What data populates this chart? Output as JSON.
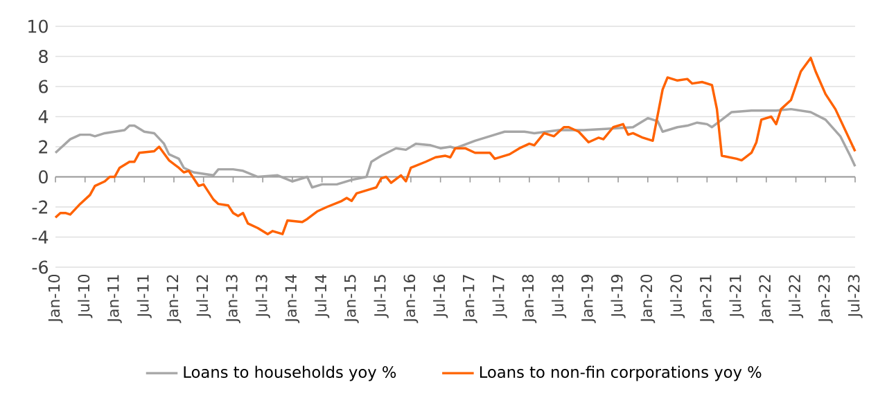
{
  "chart_data": {
    "type": "line",
    "xlim": [
      "2010-01",
      "2023-07"
    ],
    "xticks": [
      {
        "value": "2010-01",
        "label": "Jan-10"
      },
      {
        "value": "2010-07",
        "label": "Jul-10"
      },
      {
        "value": "2011-01",
        "label": "Jan-11"
      },
      {
        "value": "2011-07",
        "label": "Jul-11"
      },
      {
        "value": "2012-01",
        "label": "Jan-12"
      },
      {
        "value": "2012-07",
        "label": "Jul-12"
      },
      {
        "value": "2013-01",
        "label": "Jan-13"
      },
      {
        "value": "2013-07",
        "label": "Jul-13"
      },
      {
        "value": "2014-01",
        "label": "Jan-14"
      },
      {
        "value": "2014-07",
        "label": "Jul-14"
      },
      {
        "value": "2015-01",
        "label": "Jan-15"
      },
      {
        "value": "2015-07",
        "label": "Jul-15"
      },
      {
        "value": "2016-01",
        "label": "Jan-16"
      },
      {
        "value": "2016-07",
        "label": "Jul-16"
      },
      {
        "value": "2017-01",
        "label": "Jan-17"
      },
      {
        "value": "2017-07",
        "label": "Jul-17"
      },
      {
        "value": "2018-01",
        "label": "Jan-18"
      },
      {
        "value": "2018-07",
        "label": "Jul-18"
      },
      {
        "value": "2019-01",
        "label": "Jan-19"
      },
      {
        "value": "2019-07",
        "label": "Jul-19"
      },
      {
        "value": "2020-01",
        "label": "Jan-20"
      },
      {
        "value": "2020-07",
        "label": "Jul-20"
      },
      {
        "value": "2021-01",
        "label": "Jan-21"
      },
      {
        "value": "2021-07",
        "label": "Jul-21"
      },
      {
        "value": "2022-01",
        "label": "Jan-22"
      },
      {
        "value": "2022-07",
        "label": "Jul-22"
      },
      {
        "value": "2023-01",
        "label": "Jan-23"
      },
      {
        "value": "2023-07",
        "label": "Jul-23"
      }
    ],
    "ylim": [
      -6,
      10
    ],
    "yticks": [
      -6,
      -4,
      -2,
      0,
      2,
      4,
      6,
      8,
      10
    ],
    "grid": "y",
    "legend": "bottom",
    "marker": "none",
    "line_style": "solid",
    "series": [
      {
        "name": "Loans to households yoy %",
        "color": "#a6a6a6",
        "x": [
          "2010-01",
          "2010-04",
          "2010-06",
          "2010-08",
          "2010-09",
          "2010-11",
          "2011-01",
          "2011-03",
          "2011-04",
          "2011-05",
          "2011-07",
          "2011-09",
          "2011-11",
          "2011-12",
          "2012-02",
          "2012-03",
          "2012-05",
          "2012-09",
          "2012-10",
          "2013-01",
          "2013-03",
          "2013-06",
          "2013-10",
          "2014-01",
          "2014-04",
          "2014-05",
          "2014-07",
          "2014-10",
          "2015-01",
          "2015-04",
          "2015-05",
          "2015-07",
          "2015-10",
          "2015-12",
          "2016-02",
          "2016-05",
          "2016-07",
          "2016-09",
          "2016-10",
          "2017-02",
          "2017-06",
          "2017-08",
          "2017-12",
          "2018-02",
          "2018-07",
          "2018-12",
          "2019-05",
          "2019-10",
          "2020-01",
          "2020-03",
          "2020-04",
          "2020-07",
          "2020-09",
          "2020-11",
          "2021-01",
          "2021-02",
          "2021-04",
          "2021-06",
          "2021-10",
          "2022-03",
          "2022-06",
          "2022-10",
          "2023-01",
          "2023-04",
          "2023-06",
          "2023-07"
        ],
        "values": [
          1.6,
          2.5,
          2.8,
          2.8,
          2.7,
          2.9,
          3.0,
          3.1,
          3.4,
          3.4,
          3.0,
          2.9,
          2.2,
          1.5,
          1.2,
          0.6,
          0.3,
          0.1,
          0.5,
          0.5,
          0.4,
          0.0,
          0.1,
          -0.3,
          0.0,
          -0.7,
          -0.5,
          -0.5,
          -0.2,
          0.0,
          1.0,
          1.4,
          1.9,
          1.8,
          2.2,
          2.1,
          1.9,
          2.0,
          1.9,
          2.4,
          2.8,
          3.0,
          3.0,
          2.9,
          3.1,
          3.1,
          3.2,
          3.3,
          3.9,
          3.7,
          3.0,
          3.3,
          3.4,
          3.6,
          3.5,
          3.3,
          3.8,
          4.3,
          4.4,
          4.4,
          4.5,
          4.3,
          3.8,
          2.7,
          1.4,
          0.7
        ]
      },
      {
        "name": "Loans to non-fin corporations yoy %",
        "color": "#ff6200",
        "x": [
          "2010-01",
          "2010-02",
          "2010-03",
          "2010-04",
          "2010-06",
          "2010-08",
          "2010-09",
          "2010-11",
          "2010-12",
          "2011-01",
          "2011-02",
          "2011-04",
          "2011-05",
          "2011-06",
          "2011-09",
          "2011-10",
          "2011-12",
          "2012-02",
          "2012-03",
          "2012-04",
          "2012-06",
          "2012-07",
          "2012-09",
          "2012-10",
          "2012-12",
          "2013-01",
          "2013-02",
          "2013-03",
          "2013-04",
          "2013-06",
          "2013-08",
          "2013-09",
          "2013-11",
          "2013-12",
          "2014-03",
          "2014-04",
          "2014-06",
          "2014-08",
          "2014-11",
          "2014-12",
          "2015-01",
          "2015-02",
          "2015-05",
          "2015-06",
          "2015-07",
          "2015-08",
          "2015-09",
          "2015-11",
          "2015-12",
          "2016-01",
          "2016-04",
          "2016-06",
          "2016-08",
          "2016-09",
          "2016-10",
          "2016-12",
          "2017-02",
          "2017-05",
          "2017-06",
          "2017-09",
          "2017-11",
          "2018-01",
          "2018-02",
          "2018-04",
          "2018-06",
          "2018-08",
          "2018-09",
          "2018-11",
          "2019-01",
          "2019-03",
          "2019-04",
          "2019-06",
          "2019-08",
          "2019-09",
          "2019-10",
          "2019-12",
          "2020-02",
          "2020-04",
          "2020-05",
          "2020-07",
          "2020-09",
          "2020-10",
          "2020-12",
          "2021-02",
          "2021-03",
          "2021-04",
          "2021-07",
          "2021-08",
          "2021-10",
          "2021-11",
          "2021-12",
          "2022-02",
          "2022-03",
          "2022-04",
          "2022-06",
          "2022-08",
          "2022-10",
          "2022-11",
          "2023-01",
          "2023-03",
          "2023-07"
        ],
        "values": [
          -2.7,
          -2.4,
          -2.4,
          -2.5,
          -1.8,
          -1.2,
          -0.6,
          -0.3,
          0.0,
          0.0,
          0.6,
          1.0,
          1.0,
          1.6,
          1.7,
          2.0,
          1.1,
          0.6,
          0.3,
          0.4,
          -0.6,
          -0.5,
          -1.5,
          -1.8,
          -1.9,
          -2.4,
          -2.6,
          -2.4,
          -3.1,
          -3.4,
          -3.8,
          -3.6,
          -3.8,
          -2.9,
          -3.0,
          -2.8,
          -2.3,
          -2.0,
          -1.6,
          -1.4,
          -1.6,
          -1.1,
          -0.8,
          -0.7,
          -0.1,
          0.0,
          -0.4,
          0.1,
          -0.3,
          0.6,
          1.0,
          1.3,
          1.4,
          1.3,
          1.9,
          1.9,
          1.6,
          1.6,
          1.2,
          1.5,
          1.9,
          2.2,
          2.1,
          2.9,
          2.7,
          3.3,
          3.3,
          3.0,
          2.3,
          2.6,
          2.5,
          3.3,
          3.5,
          2.8,
          2.9,
          2.6,
          2.4,
          5.8,
          6.6,
          6.4,
          6.5,
          6.2,
          6.3,
          6.1,
          4.5,
          1.4,
          1.2,
          1.1,
          1.6,
          2.3,
          3.8,
          4.0,
          3.5,
          4.5,
          5.1,
          7.0,
          7.9,
          7.0,
          5.5,
          4.5,
          1.7
        ]
      }
    ]
  }
}
